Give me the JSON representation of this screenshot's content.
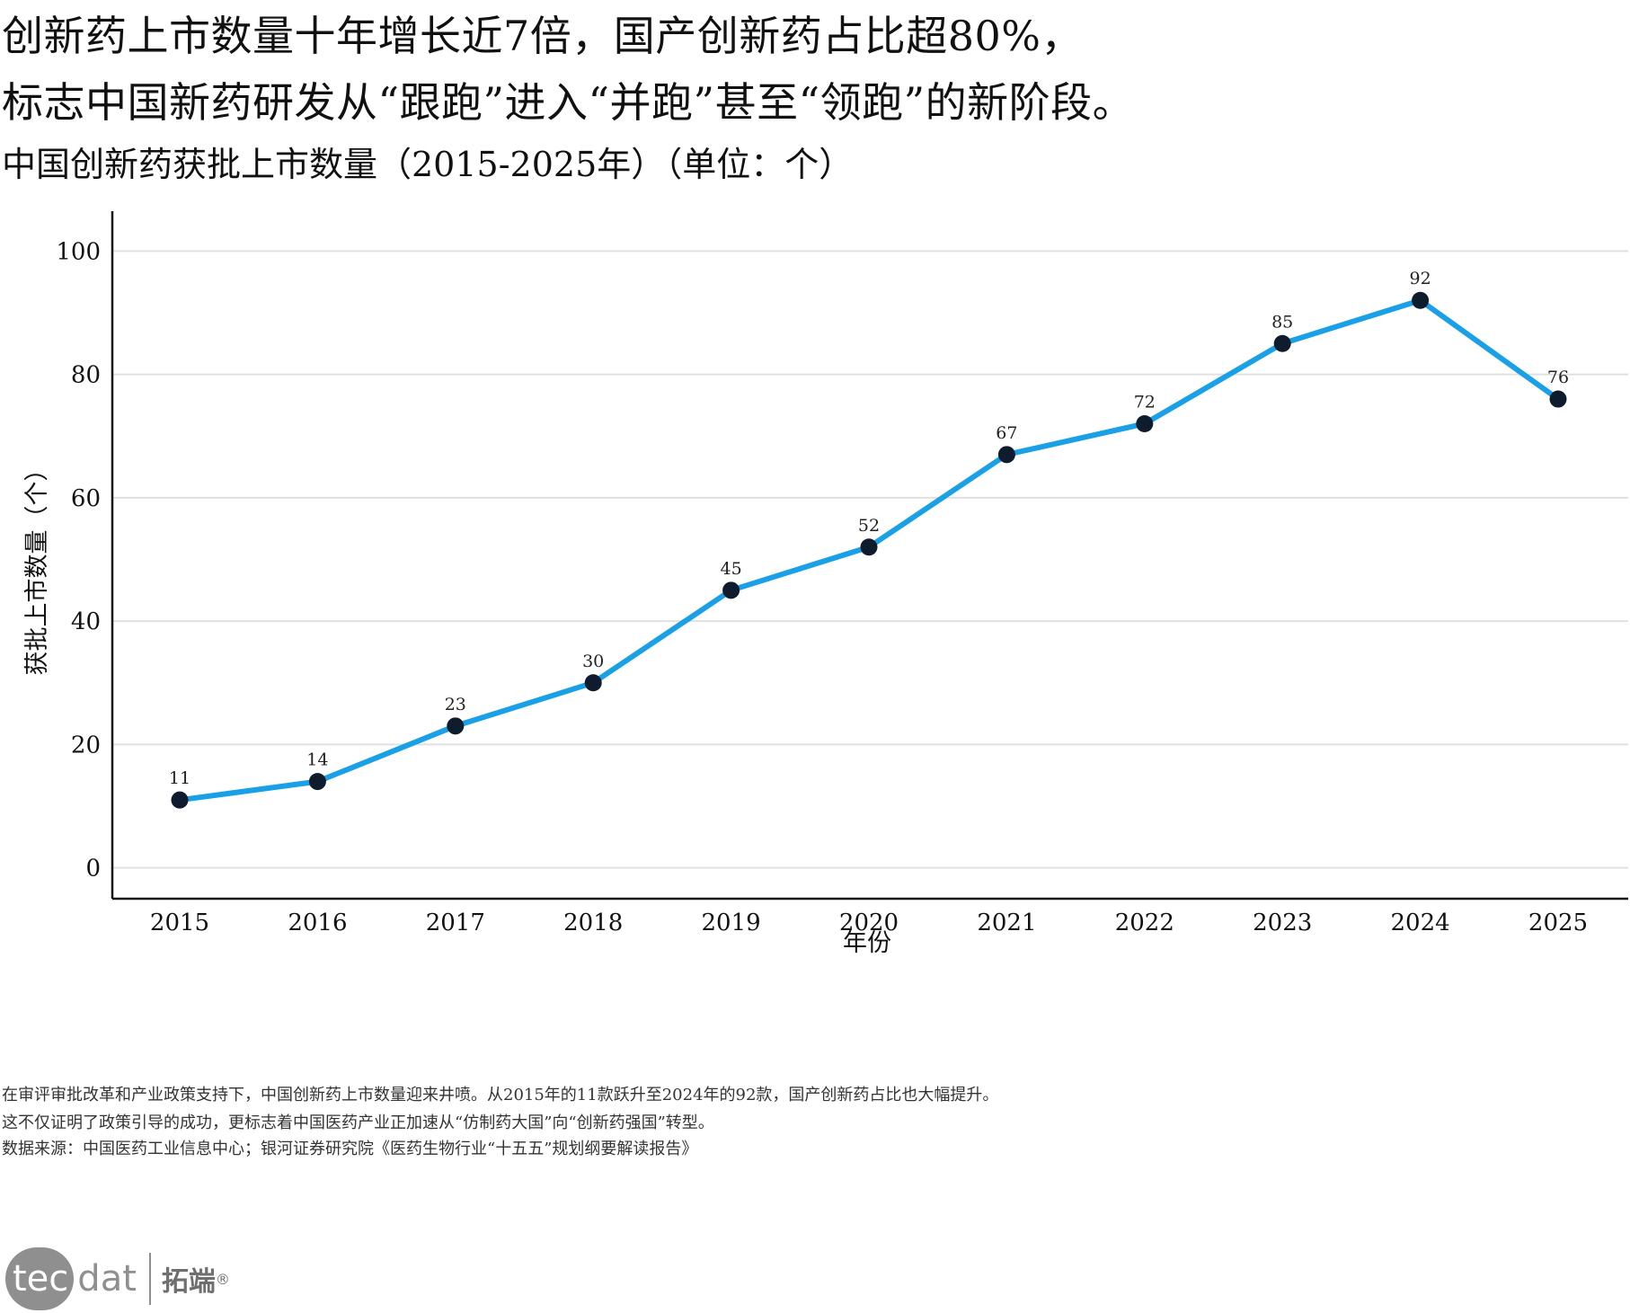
{
  "headline": {
    "line1": "创新药上市数量十年增长近7倍，国产创新药占比超80%，",
    "line2": "标志中国新药研发从“跟跑”进入“并跑”甚至“领跑”的新阶段。"
  },
  "chart_data": {
    "type": "line",
    "title": "中国创新药获批上市数量（2015-2025年）（单位：个）",
    "xlabel": "年份",
    "ylabel": "获批上市数量（个）",
    "categories": [
      "2015",
      "2016",
      "2017",
      "2018",
      "2019",
      "2020",
      "2021",
      "2022",
      "2023",
      "2024",
      "2025"
    ],
    "values": [
      11,
      14,
      23,
      30,
      45,
      52,
      67,
      72,
      85,
      92,
      76
    ],
    "data_labels": [
      "11",
      "14",
      "23",
      "30",
      "45",
      "52",
      "67",
      "72",
      "85",
      "92",
      "76"
    ],
    "y_ticks": [
      "0",
      "20",
      "40",
      "60",
      "80",
      "100"
    ],
    "ylim": [
      -5,
      105
    ],
    "grid": true,
    "legend": "none",
    "colors": {
      "line": "#1aa0e6",
      "marker": "#0f1c2e",
      "grid": "#e0e0e0",
      "axis": "#111111"
    }
  },
  "notes": {
    "line1": "在审评审批改革和产业政策支持下，中国创新药上市数量迎来井喷。从2015年的11款跃升至2024年的92款，国产创新药占比也大幅提升。",
    "line2": "这不仅证明了政策引导的成功，更标志着中国医药产业正加速从“仿制药大国”向“创新药强国”转型。",
    "source": "数据来源：中国医药工业信息中心；银河证券研究院《医药生物行业“十五五”规划纲要解读报告》"
  },
  "logo": {
    "part1": "tec",
    "part2": "dat",
    "cn": "拓端",
    "reg": "®"
  }
}
